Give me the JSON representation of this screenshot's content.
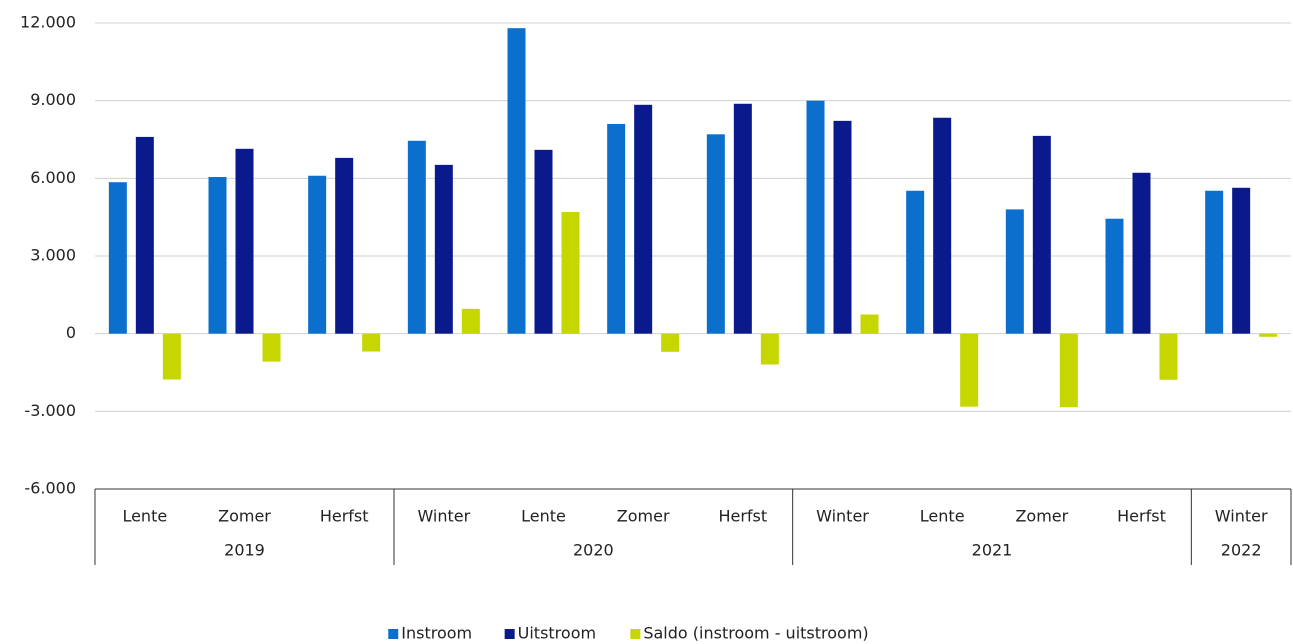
{
  "chart_data": {
    "type": "bar",
    "categories": [
      "Lente",
      "Zomer",
      "Herfst",
      "Winter",
      "Lente",
      "Zomer",
      "Herfst",
      "Winter",
      "Lente",
      "Zomer",
      "Herfst",
      "Winter"
    ],
    "groups": [
      {
        "label": "2019",
        "size": 3
      },
      {
        "label": "2020",
        "size": 4
      },
      {
        "label": "2021",
        "size": 4
      },
      {
        "label": "2022",
        "size": 1
      }
    ],
    "series": [
      {
        "name": "Instroom",
        "color": "#0a6fcd",
        "values": [
          5850,
          6050,
          6100,
          7450,
          11800,
          8100,
          7700,
          9000,
          5520,
          4800,
          4440,
          5520
        ]
      },
      {
        "name": "Uitstroom",
        "color": "#0a1a8c",
        "values": [
          7600,
          7140,
          6790,
          6520,
          7100,
          8840,
          8880,
          8220,
          8340,
          7640,
          6215,
          5635
        ]
      },
      {
        "name": "Saldo (instroom - uitstroom)",
        "color": "#c5d600",
        "values": [
          -1770,
          -1080,
          -690,
          960,
          4700,
          -700,
          -1190,
          740,
          -2820,
          -2840,
          -1780,
          -120
        ]
      }
    ],
    "ylim": [
      -6000,
      12000
    ],
    "yticks": [
      {
        "value": -6000,
        "label": "-6.000"
      },
      {
        "value": -3000,
        "label": "-3.000"
      },
      0,
      {
        "value": 3000,
        "label": "3.000"
      },
      {
        "value": 6000,
        "label": "6.000"
      },
      {
        "value": 9000,
        "label": "9.000"
      },
      {
        "value": 12000,
        "label": "12.000"
      }
    ],
    "grid": true
  }
}
